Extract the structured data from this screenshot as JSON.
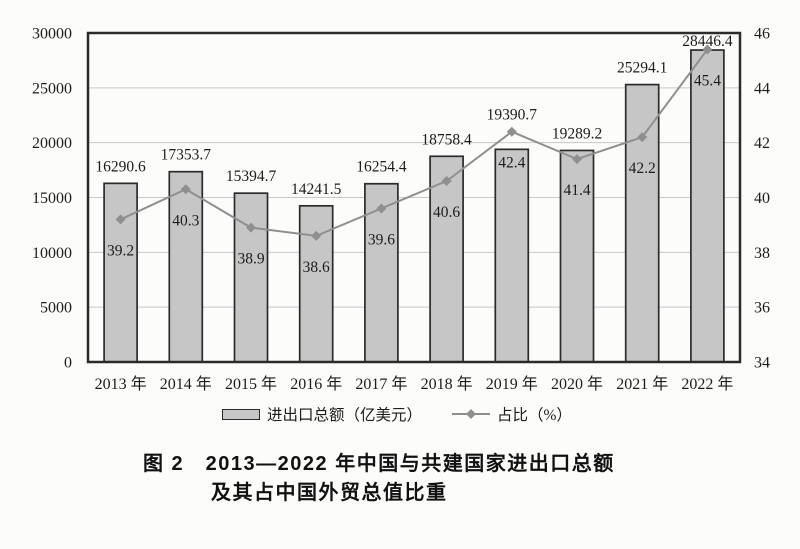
{
  "page": {
    "background": "#fcfcfa"
  },
  "chart_data": {
    "type": "bar",
    "title": "",
    "categories": [
      "2013 年",
      "2014 年",
      "2015 年",
      "2016 年",
      "2017 年",
      "2018 年",
      "2019 年",
      "2020 年",
      "2021 年",
      "2022 年"
    ],
    "series": [
      {
        "name": "进出口总额（亿美元）",
        "type": "bar",
        "axis": "left",
        "values": [
          16290.6,
          17353.7,
          15394.7,
          14241.5,
          16254.4,
          18758.4,
          19390.7,
          19289.2,
          25294.1,
          28446.4
        ],
        "fill": "#c6c6c6",
        "stroke": "#2b2b2b"
      },
      {
        "name": "占比（%）",
        "type": "line",
        "axis": "right",
        "values": [
          39.2,
          40.3,
          38.9,
          38.6,
          39.6,
          40.6,
          42.4,
          41.4,
          42.2,
          45.4
        ],
        "color": "#8f8f8f",
        "marker": "diamond"
      }
    ],
    "left_axis": {
      "min": 0,
      "max": 30000,
      "step": 5000,
      "ticks": [
        0,
        5000,
        10000,
        15000,
        20000,
        25000,
        30000
      ]
    },
    "right_axis": {
      "min": 34,
      "max": 46,
      "step": 2,
      "ticks": [
        34,
        36,
        38,
        40,
        42,
        44,
        46
      ]
    },
    "grid": true,
    "legend_position": "bottom",
    "colors": {
      "grid": "#c9c9c9",
      "frame": "#2b2b2b",
      "text": "#1c1c1c"
    }
  },
  "legend": {
    "bar_label": "进出口总额（亿美元）",
    "line_label": "占比（%）"
  },
  "caption": {
    "line1": "图 2　2013—2022 年中国与共建国家进出口总额",
    "line2": "及其占中国外贸总值比重"
  }
}
